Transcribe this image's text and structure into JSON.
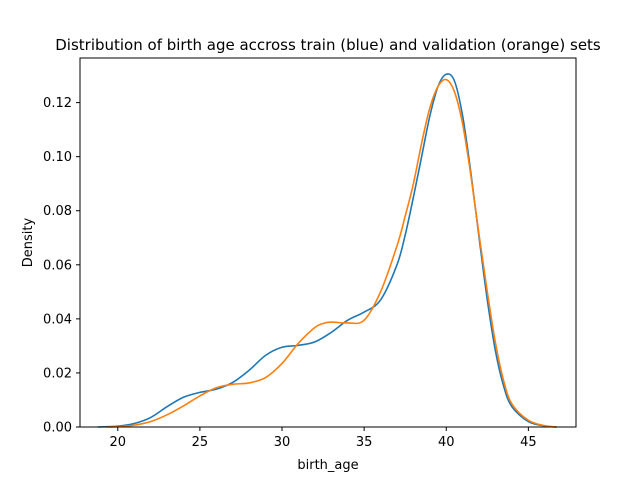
{
  "chart_data": {
    "type": "line",
    "title": "Distribution of birth age accross train (blue) and validation (orange) sets",
    "xlabel": "birth_age",
    "ylabel": "Density",
    "xlim": [
      17.7,
      47.9
    ],
    "ylim": [
      0,
      0.1365
    ],
    "xticks": [
      20,
      25,
      30,
      35,
      40,
      45
    ],
    "yticks": [
      0.0,
      0.02,
      0.04,
      0.06,
      0.08,
      0.1,
      0.12
    ],
    "ytick_labels": [
      "0.00",
      "0.02",
      "0.04",
      "0.06",
      "0.08",
      "0.10",
      "0.12"
    ],
    "grid": false,
    "series": [
      {
        "color": "#1f77b4",
        "x": [
          18.8,
          20,
          21,
          22,
          23,
          24,
          25,
          26,
          27,
          28,
          29,
          30,
          31,
          32,
          33,
          34,
          35,
          36,
          37,
          37.5,
          38,
          38.5,
          39,
          39.5,
          40,
          40.5,
          41,
          41.5,
          42,
          42.5,
          43,
          43.5,
          44,
          45,
          46,
          46.7
        ],
        "y": [
          0.0,
          0.0003,
          0.0013,
          0.0035,
          0.0075,
          0.011,
          0.0128,
          0.014,
          0.0165,
          0.021,
          0.0265,
          0.0295,
          0.0302,
          0.0315,
          0.035,
          0.0395,
          0.0425,
          0.047,
          0.06,
          0.071,
          0.085,
          0.1,
          0.115,
          0.126,
          0.1305,
          0.128,
          0.115,
          0.094,
          0.07,
          0.047,
          0.028,
          0.015,
          0.0075,
          0.002,
          0.0004,
          0.0
        ]
      },
      {
        "color": "#ff7f0e",
        "x": [
          19.3,
          20,
          21,
          22,
          23,
          24,
          25,
          26,
          27,
          28,
          29,
          30,
          31,
          32,
          32.5,
          33,
          34,
          35,
          36,
          37,
          37.5,
          38,
          38.5,
          39,
          39.5,
          40,
          40.5,
          41,
          41.5,
          42,
          42.5,
          43,
          43.5,
          44,
          45,
          46,
          46.7
        ],
        "y": [
          0.0,
          0.0001,
          0.0007,
          0.002,
          0.0045,
          0.0078,
          0.0115,
          0.0145,
          0.0158,
          0.0163,
          0.0183,
          0.0235,
          0.031,
          0.0368,
          0.0383,
          0.0388,
          0.0385,
          0.0395,
          0.05,
          0.067,
          0.078,
          0.09,
          0.105,
          0.118,
          0.126,
          0.1285,
          0.124,
          0.112,
          0.093,
          0.071,
          0.05,
          0.031,
          0.017,
          0.0085,
          0.0025,
          0.0005,
          0.0
        ]
      }
    ]
  }
}
